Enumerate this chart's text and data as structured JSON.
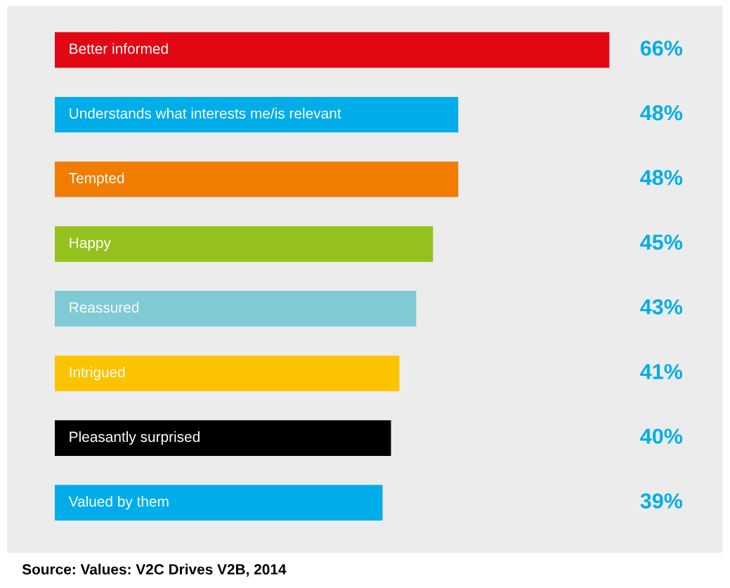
{
  "chart_data": {
    "type": "bar",
    "orientation": "horizontal",
    "categories": [
      "Better informed",
      "Understands what interests me/is relevant",
      "Tempted",
      "Happy",
      "Reassured",
      "Intrigued",
      "Pleasantly surprised",
      "Valued by them"
    ],
    "values": [
      66,
      48,
      48,
      45,
      43,
      41,
      40,
      39
    ],
    "colors": [
      "#e30613",
      "#00ade9",
      "#f07d00",
      "#95c11f",
      "#7fcad4",
      "#fbc300",
      "#000000",
      "#00ade9"
    ],
    "value_labels": [
      "66%",
      "48%",
      "48%",
      "45%",
      "43%",
      "41%",
      "40%",
      "39%"
    ],
    "annotations": [
      "Source: Values: V2C Drives V2B, 2014"
    ]
  }
}
